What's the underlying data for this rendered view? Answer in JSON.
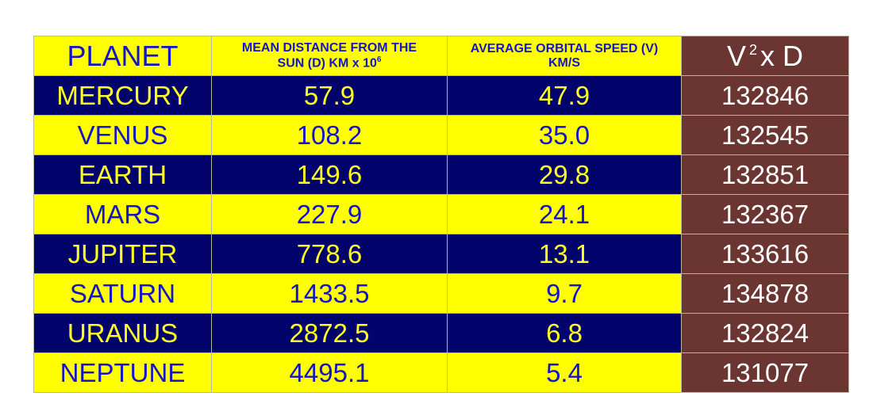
{
  "header": {
    "planet": "PLANET",
    "distance": {
      "line1": "MEAN DISTANCE FROM THE",
      "line2": "SUN (D) KM x 10",
      "sup": "6"
    },
    "speed": {
      "line1": "AVERAGE ORBITAL SPEED (V)",
      "line2": "KM/S"
    },
    "product": {
      "base": "V",
      "sup": "2",
      "rest": "x D"
    }
  },
  "rows": [
    [
      "MERCURY",
      "57.9",
      "47.9",
      "132846"
    ],
    [
      "VENUS",
      "108.2",
      "35.0",
      "132545"
    ],
    [
      "EARTH",
      "149.6",
      "29.8",
      "132851"
    ],
    [
      "MARS",
      "227.9",
      "24.1",
      "132367"
    ],
    [
      "JUPITER",
      "778.6",
      "13.1",
      "133616"
    ],
    [
      "SATURN",
      "1433.5",
      "9.7",
      "134878"
    ],
    [
      "URANUS",
      "2872.5",
      "6.8",
      "132824"
    ],
    [
      "NEPTUNE",
      "4495.1",
      "5.4",
      "131077"
    ]
  ]
}
